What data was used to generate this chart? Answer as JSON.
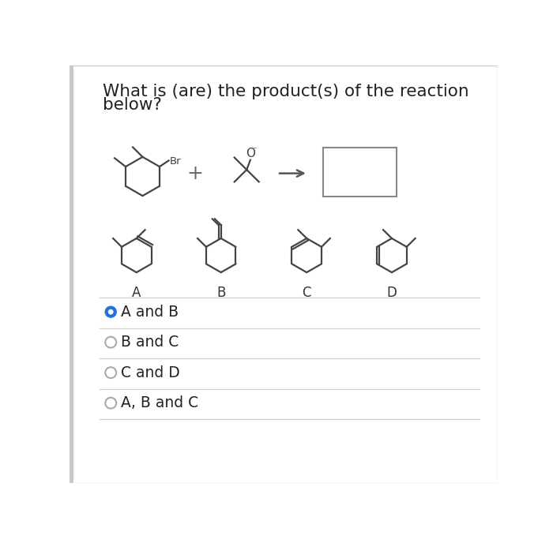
{
  "title_line1": "What is (are) the product(s) of the reaction",
  "title_line2": "below?",
  "bg_color": "#ffffff",
  "border_color": "#cccccc",
  "text_color": "#222222",
  "mol_color": "#444444",
  "options": [
    "A and B",
    "B and C",
    "C and D",
    "A, B and C"
  ],
  "selected_index": 0,
  "selected_color": "#1a73e8",
  "option_labels": [
    "A",
    "B",
    "C",
    "D"
  ],
  "figsize": [
    7.0,
    6.88
  ],
  "dpi": 100
}
